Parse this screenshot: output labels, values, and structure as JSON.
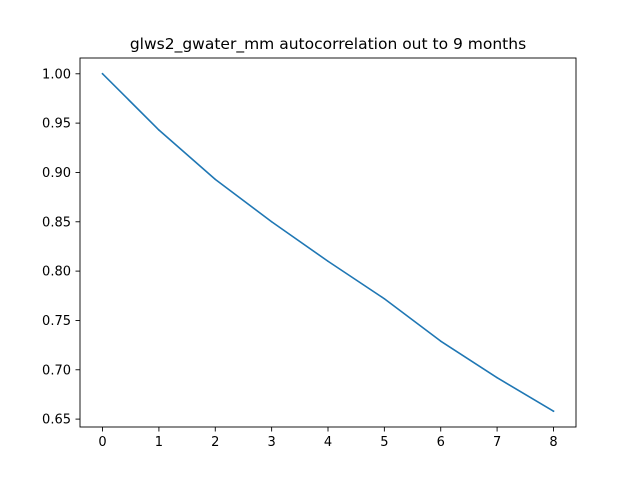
{
  "chart_data": {
    "type": "line",
    "title": "glws2_gwater_mm autocorrelation out to 9 months",
    "xlabel": "",
    "ylabel": "",
    "x": [
      0,
      1,
      2,
      3,
      4,
      5,
      6,
      7,
      8
    ],
    "series": [
      {
        "values": [
          1.0,
          0.943,
          0.893,
          0.85,
          0.81,
          0.772,
          0.729,
          0.692,
          0.658
        ],
        "color": "#1f77b4"
      }
    ],
    "xlim": [
      -0.4,
      8.4
    ],
    "ylim": [
      0.642,
      1.016
    ],
    "xticks": [
      0,
      1,
      2,
      3,
      4,
      5,
      6,
      7,
      8
    ],
    "yticks": [
      0.65,
      0.7,
      0.75,
      0.8,
      0.85,
      0.9,
      0.95,
      1.0
    ],
    "ytick_labels": [
      "0.65",
      "0.70",
      "0.75",
      "0.80",
      "0.85",
      "0.90",
      "0.95",
      "1.00"
    ],
    "grid": false,
    "legend": "none"
  }
}
